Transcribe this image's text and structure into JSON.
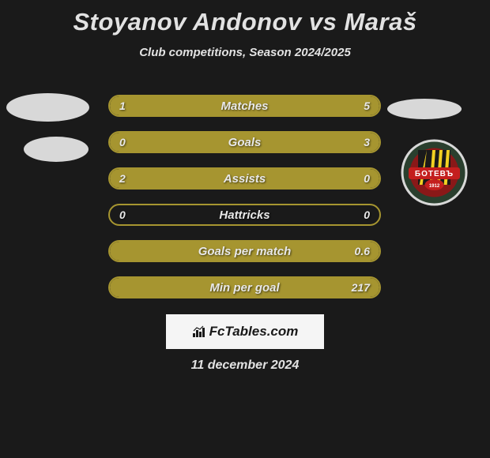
{
  "title": "Stoyanov Andonov vs Maraš",
  "subtitle": "Club competitions, Season 2024/2025",
  "date": "11 december 2024",
  "fctables_label": "FcTables.com",
  "colors": {
    "background": "#1a1a1a",
    "bar_fill": "#a69530",
    "bar_border": "#a69530",
    "text": "#e2e2e2",
    "oval": "#d8d8d8"
  },
  "badge": {
    "name": "Botev",
    "year": "1912",
    "colors": {
      "outer": "#2a3f2e",
      "ring": "#8a1818",
      "banner": "#c41e1e",
      "stripes_bg": "#1a1a1a",
      "stripes_fg": "#f2d022"
    }
  },
  "stats": [
    {
      "label": "Matches",
      "left_value": "1",
      "right_value": "5",
      "left_pct": 16.7,
      "right_pct": 83.3
    },
    {
      "label": "Goals",
      "left_value": "0",
      "right_value": "3",
      "left_pct": 0,
      "right_pct": 100
    },
    {
      "label": "Assists",
      "left_value": "2",
      "right_value": "0",
      "left_pct": 100,
      "right_pct": 0
    },
    {
      "label": "Hattricks",
      "left_value": "0",
      "right_value": "0",
      "left_pct": 0,
      "right_pct": 0
    },
    {
      "label": "Goals per match",
      "left_value": "",
      "right_value": "0.6",
      "left_pct": 0,
      "right_pct": 100
    },
    {
      "label": "Min per goal",
      "left_value": "",
      "right_value": "217",
      "left_pct": 0,
      "right_pct": 100
    }
  ]
}
